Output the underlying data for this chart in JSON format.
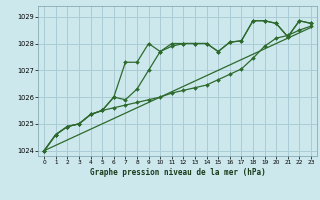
{
  "title": "Graphe pression niveau de la mer (hPa)",
  "background_color": "#cce8ec",
  "grid_color": "#aaccd4",
  "line_color": "#2d6a2d",
  "xlim": [
    -0.5,
    23.5
  ],
  "ylim": [
    1023.8,
    1029.4
  ],
  "yticks": [
    1024,
    1025,
    1026,
    1027,
    1028,
    1029
  ],
  "xticks": [
    0,
    1,
    2,
    3,
    4,
    5,
    6,
    7,
    8,
    9,
    10,
    11,
    12,
    13,
    14,
    15,
    16,
    17,
    18,
    19,
    20,
    21,
    22,
    23
  ],
  "trend_line": [
    [
      0,
      23
    ],
    [
      1024.0,
      1028.6
    ]
  ],
  "line1": [
    1024.0,
    1024.6,
    1024.9,
    1025.0,
    1025.35,
    1025.5,
    1026.0,
    1027.3,
    1027.3,
    1028.0,
    1027.7,
    1028.0,
    1028.0,
    1028.0,
    1028.0,
    1027.7,
    1028.05,
    1028.1,
    1028.85,
    1028.85,
    1028.75,
    1028.25,
    1028.85,
    1028.75
  ],
  "line2": [
    1024.0,
    1024.6,
    1024.9,
    1025.0,
    1025.35,
    1025.5,
    1026.0,
    1025.9,
    1026.3,
    1027.0,
    1027.7,
    1027.9,
    1028.0,
    1028.0,
    1028.0,
    1027.7,
    1028.05,
    1028.1,
    1028.85,
    1028.85,
    1028.75,
    1028.25,
    1028.85,
    1028.75
  ],
  "line3": [
    1024.0,
    1024.6,
    1024.9,
    1025.0,
    1025.35,
    1025.5,
    1025.6,
    1025.7,
    1025.8,
    1025.9,
    1026.0,
    1026.15,
    1026.25,
    1026.35,
    1026.45,
    1026.65,
    1026.85,
    1027.05,
    1027.45,
    1027.9,
    1028.2,
    1028.3,
    1028.5,
    1028.65
  ]
}
